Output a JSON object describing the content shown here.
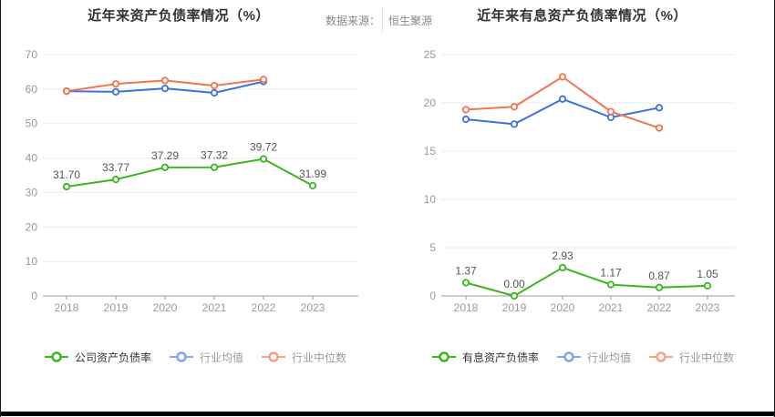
{
  "source": {
    "label": "数据来源：",
    "value": "恒生聚源"
  },
  "palette": {
    "company_green": "#3cb521",
    "industry_blue": "#3d6fe0",
    "industry_orange": "#f2764e",
    "legend_blue_icon": "#87a4ee",
    "legend_orange_icon": "#f5a285",
    "gridline": "#e8ebf3",
    "axis": "#999999",
    "axis_label": "#999999",
    "data_label": "#555555",
    "title": "#333333"
  },
  "chart_data": [
    {
      "type": "line",
      "title": "近年来资产负债率情况（%）",
      "xlabel": "",
      "ylabel": "",
      "categories": [
        "2018",
        "2019",
        "2020",
        "2021",
        "2022",
        "2023"
      ],
      "ylim": [
        0,
        70
      ],
      "yticks": [
        0,
        10,
        20,
        30,
        40,
        50,
        60,
        70
      ],
      "grid": true,
      "legend_position": "bottom",
      "series": [
        {
          "name": "公司资产负债率",
          "color": "#3cb521",
          "icon_color": "#3cb521",
          "text_color": "#333333",
          "values": [
            31.7,
            33.77,
            37.29,
            37.32,
            39.72,
            31.99
          ],
          "labels": [
            "31.70",
            "33.77",
            "37.29",
            "37.32",
            "39.72",
            "31.99"
          ]
        },
        {
          "name": "行业均值",
          "color": "#3d6fe0",
          "icon_color": "#87a4ee",
          "text_color": "#999999",
          "values": [
            59.4,
            59.2,
            60.2,
            58.9,
            62.2,
            null
          ]
        },
        {
          "name": "行业中位数",
          "color": "#f2764e",
          "icon_color": "#f5a285",
          "text_color": "#999999",
          "values": [
            59.4,
            61.5,
            62.5,
            61.0,
            62.8,
            null
          ]
        }
      ]
    },
    {
      "type": "line",
      "title": "近年来有息资产负债率情况（%）",
      "xlabel": "",
      "ylabel": "",
      "categories": [
        "2018",
        "2019",
        "2020",
        "2021",
        "2022",
        "2023"
      ],
      "ylim": [
        0,
        25
      ],
      "yticks": [
        0,
        5,
        10,
        15,
        20,
        25
      ],
      "grid": true,
      "legend_position": "bottom",
      "series": [
        {
          "name": "有息资产负债率",
          "color": "#3cb521",
          "icon_color": "#3cb521",
          "text_color": "#333333",
          "values": [
            1.37,
            0.0,
            2.93,
            1.17,
            0.87,
            1.05
          ],
          "labels": [
            "1.37",
            "0.00",
            "2.93",
            "1.17",
            "0.87",
            "1.05"
          ]
        },
        {
          "name": "行业均值",
          "color": "#3d6fe0",
          "icon_color": "#87a4ee",
          "text_color": "#999999",
          "values": [
            18.3,
            17.8,
            20.4,
            18.5,
            19.5,
            null
          ]
        },
        {
          "name": "行业中位数",
          "color": "#f2764e",
          "icon_color": "#f5a285",
          "text_color": "#999999",
          "values": [
            19.3,
            19.6,
            22.7,
            19.1,
            17.4,
            null
          ]
        }
      ]
    }
  ]
}
